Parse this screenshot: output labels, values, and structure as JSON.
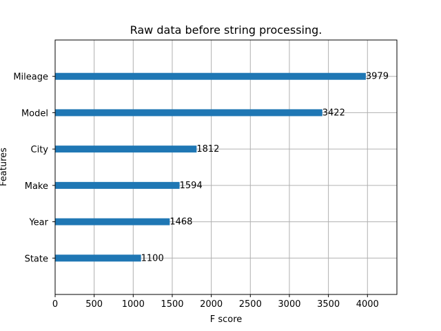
{
  "chart_data": {
    "type": "bar",
    "orientation": "horizontal",
    "title": "Raw data before string processing.",
    "xlabel": "F score",
    "ylabel": "Features",
    "categories": [
      "State",
      "Year",
      "Make",
      "City",
      "Model",
      "Mileage"
    ],
    "values": [
      1100,
      1468,
      1594,
      1812,
      3422,
      3979
    ],
    "xlim": [
      0,
      4377
    ],
    "xticks": [
      0,
      500,
      1000,
      1500,
      2000,
      2500,
      3000,
      3500,
      4000
    ],
    "grid": true,
    "bar_color": "#1f77b4"
  }
}
